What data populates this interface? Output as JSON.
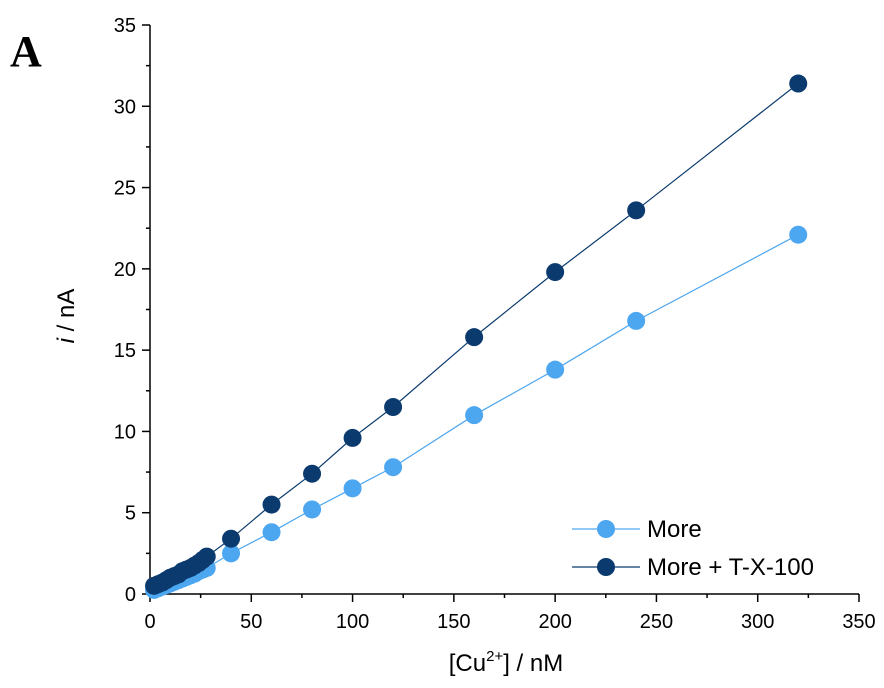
{
  "panel_label": "A",
  "chart_data": {
    "type": "line",
    "xlabel": "[Cu2+] / nM",
    "xlabel_parts": {
      "pre": "[Cu",
      "sup": "2+",
      "post": "] / nM"
    },
    "ylabel": "i / nA",
    "ylabel_parts": {
      "var": "i",
      "rest": " / nA"
    },
    "xlim": [
      0,
      350
    ],
    "ylim": [
      0,
      35
    ],
    "xticks": [
      0,
      50,
      100,
      150,
      200,
      250,
      300,
      350
    ],
    "yticks": [
      0,
      5,
      10,
      15,
      20,
      25,
      30,
      35
    ],
    "grid": false,
    "legend_position": "bottom-right",
    "series": [
      {
        "name": "More",
        "color": "#4da6f0",
        "x": [
          2,
          4,
          6,
          8,
          10,
          12,
          14,
          16,
          18,
          20,
          22,
          24,
          26,
          28,
          40,
          60,
          80,
          100,
          120,
          160,
          200,
          240,
          320
        ],
        "y": [
          0.25,
          0.35,
          0.45,
          0.55,
          0.65,
          0.75,
          0.85,
          0.95,
          1.05,
          1.15,
          1.25,
          1.4,
          1.5,
          1.6,
          2.5,
          3.8,
          5.2,
          6.5,
          7.8,
          11.0,
          13.8,
          16.8,
          22.1
        ]
      },
      {
        "name": "More + T-X-100",
        "color": "#0b3a6e",
        "x": [
          2,
          4,
          6,
          8,
          10,
          12,
          14,
          16,
          18,
          20,
          22,
          24,
          26,
          28,
          40,
          60,
          80,
          100,
          120,
          160,
          200,
          240,
          320
        ],
        "y": [
          0.5,
          0.6,
          0.7,
          0.85,
          1.0,
          1.1,
          1.2,
          1.4,
          1.5,
          1.6,
          1.75,
          1.9,
          2.1,
          2.3,
          3.4,
          5.5,
          7.4,
          9.6,
          11.5,
          15.8,
          19.8,
          23.6,
          31.4
        ]
      }
    ]
  }
}
